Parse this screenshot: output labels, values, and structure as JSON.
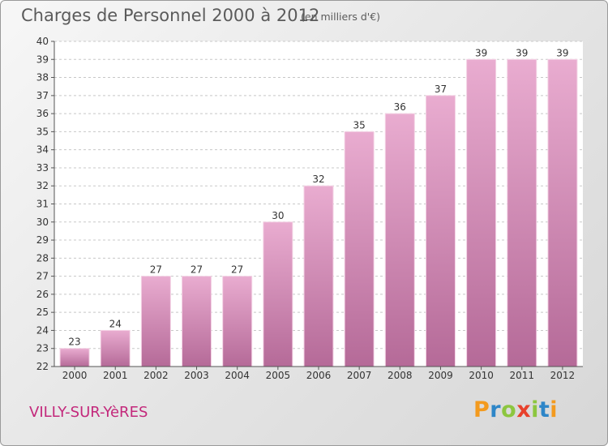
{
  "chart_data": {
    "type": "bar",
    "title": "Charges de Personnel 2000 à 2012",
    "subtitle": "(en milliers d'€)",
    "categories": [
      "2000",
      "2001",
      "2002",
      "2003",
      "2004",
      "2005",
      "2006",
      "2007",
      "2008",
      "2009",
      "2010",
      "2011",
      "2012"
    ],
    "values": [
      23,
      24,
      27,
      27,
      27,
      30,
      32,
      35,
      36,
      37,
      39,
      39,
      39
    ],
    "ylim": [
      22,
      40
    ],
    "yticks": [
      "22",
      "23",
      "24",
      "25",
      "26",
      "27",
      "28",
      "29",
      "30",
      "31",
      "32",
      "33",
      "34",
      "35",
      "36",
      "37",
      "38",
      "39",
      "40"
    ],
    "grid": "horizontal dashed",
    "bar_color": "#d98cb9"
  },
  "footer": {
    "commune": "VILLY-SUR-YèRES",
    "logo_text": "Proxiti"
  },
  "colors": {
    "title": "#5b5b5b",
    "commune": "#c3287b",
    "logo": [
      "#f39a1e",
      "#2e86c8",
      "#8cc63f",
      "#e8412c"
    ]
  }
}
